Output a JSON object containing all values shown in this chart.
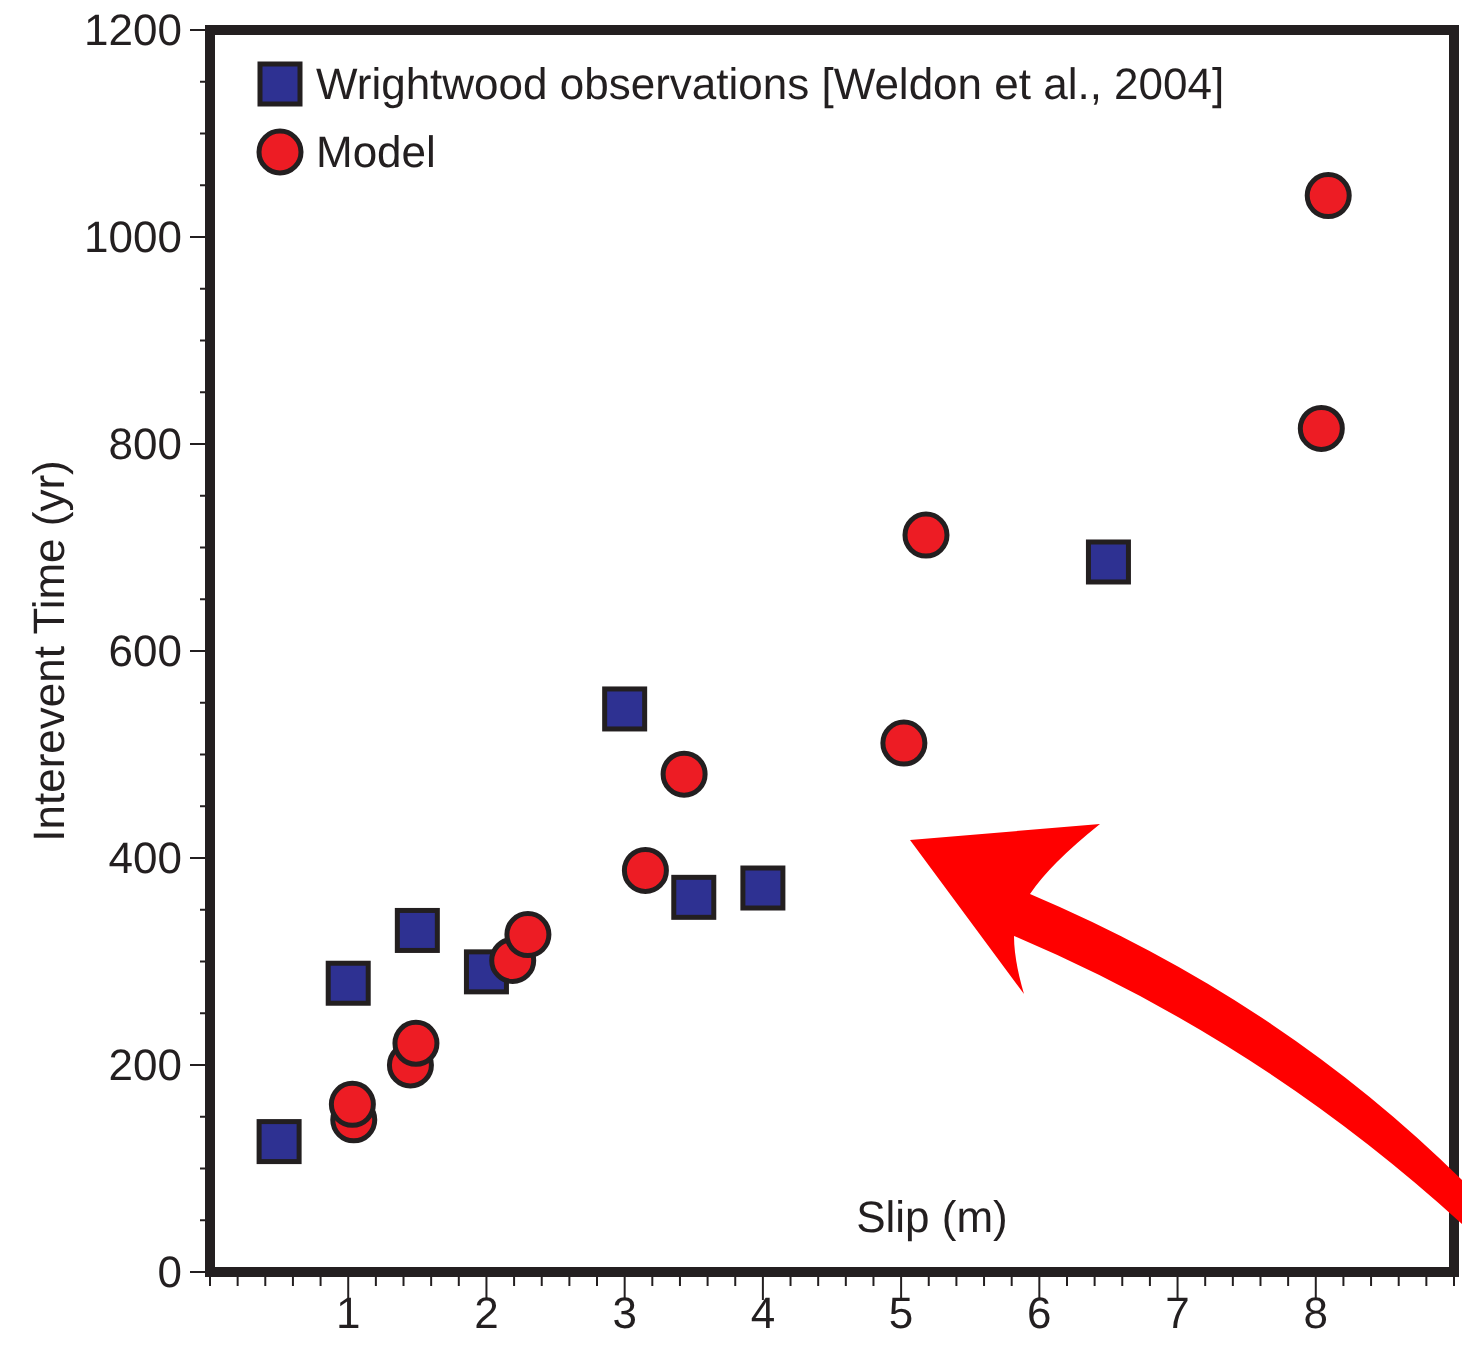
{
  "chart_data": {
    "type": "scatter",
    "xlabel": "Slip (m)",
    "ylabel": "Interevent Time (yr)",
    "xlim": [
      0,
      9
    ],
    "ylim": [
      0,
      1200
    ],
    "xticks": [
      {
        "value": 0,
        "label": null
      },
      {
        "value": 0.2,
        "label": null
      },
      {
        "value": 0.4,
        "label": null
      },
      {
        "value": 0.6,
        "label": null
      },
      {
        "value": 0.8,
        "label": null
      },
      1,
      {
        "value": 1.2,
        "label": null
      },
      {
        "value": 1.4,
        "label": null
      },
      {
        "value": 1.6,
        "label": null
      },
      {
        "value": 1.8,
        "label": null
      },
      2,
      {
        "value": 2.2,
        "label": null
      },
      {
        "value": 2.4,
        "label": null
      },
      {
        "value": 2.6,
        "label": null
      },
      {
        "value": 2.8,
        "label": null
      },
      3,
      {
        "value": 3.2,
        "label": null
      },
      {
        "value": 3.4,
        "label": null
      },
      {
        "value": 3.6,
        "label": null
      },
      {
        "value": 3.8,
        "label": null
      },
      4,
      {
        "value": 4.2,
        "label": null
      },
      {
        "value": 4.4,
        "label": null
      },
      {
        "value": 4.6,
        "label": null
      },
      {
        "value": 4.8,
        "label": null
      },
      5,
      {
        "value": 5.2,
        "label": null
      },
      {
        "value": 5.4,
        "label": null
      },
      {
        "value": 5.6,
        "label": null
      },
      {
        "value": 5.8,
        "label": null
      },
      6,
      {
        "value": 6.2,
        "label": null
      },
      {
        "value": 6.4,
        "label": null
      },
      {
        "value": 6.6,
        "label": null
      },
      {
        "value": 6.8,
        "label": null
      },
      7,
      {
        "value": 7.2,
        "label": null
      },
      {
        "value": 7.4,
        "label": null
      },
      {
        "value": 7.6,
        "label": null
      },
      {
        "value": 7.8,
        "label": null
      },
      8,
      {
        "value": 8.2,
        "label": null
      },
      {
        "value": 8.4,
        "label": null
      },
      {
        "value": 8.6,
        "label": null
      },
      {
        "value": 8.8,
        "label": null
      },
      {
        "value": 9,
        "label": null
      }
    ],
    "yticks": [
      0,
      {
        "value": 50,
        "label": null
      },
      {
        "value": 100,
        "label": null
      },
      {
        "value": 150,
        "label": null
      },
      200,
      {
        "value": 250,
        "label": null
      },
      {
        "value": 300,
        "label": null
      },
      {
        "value": 350,
        "label": null
      },
      400,
      {
        "value": 450,
        "label": null
      },
      {
        "value": 500,
        "label": null
      },
      {
        "value": 550,
        "label": null
      },
      600,
      {
        "value": 650,
        "label": null
      },
      {
        "value": 700,
        "label": null
      },
      {
        "value": 750,
        "label": null
      },
      800,
      {
        "value": 850,
        "label": null
      },
      {
        "value": 900,
        "label": null
      },
      {
        "value": 950,
        "label": null
      },
      1000,
      {
        "value": 1050,
        "label": null
      },
      {
        "value": 1100,
        "label": null
      },
      {
        "value": 1150,
        "label": null
      },
      1200
    ],
    "legend": "top left",
    "series": [
      {
        "name": "Wrightwood observations [Weldon et al., 2004]",
        "color": "#2e3192",
        "marker": "square",
        "x": [
          0.5,
          1,
          1.5,
          2,
          3,
          3.5,
          4,
          6.5
        ],
        "values": [
          126,
          279,
          330,
          290,
          544,
          362,
          371,
          686
        ]
      },
      {
        "name": "Model",
        "color": "#ed1c24",
        "marker": "circle",
        "x": [
          1.04,
          1.03,
          1.45,
          1.49,
          2.19,
          2.3,
          3.15,
          3.43,
          5.02,
          5.18,
          8.04,
          8.09
        ],
        "values": [
          147,
          162,
          200,
          221,
          301,
          326,
          388,
          481,
          511,
          712,
          815,
          1040
        ]
      }
    ]
  }
}
